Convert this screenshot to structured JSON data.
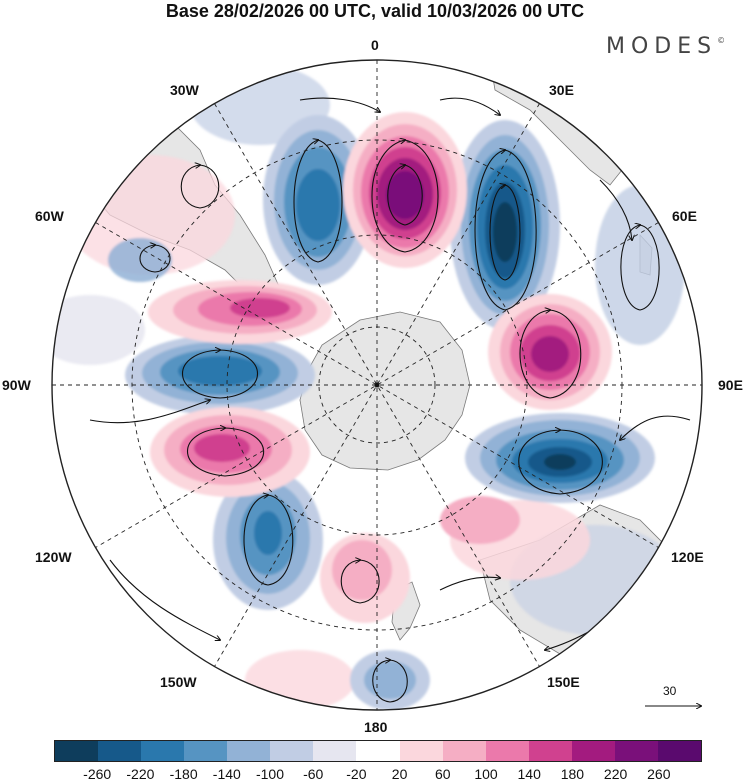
{
  "header": {
    "title": "Base 28/02/2026 00 UTC, valid 10/03/2026 00 UTC",
    "brand": "MODES",
    "brand_mark": "©"
  },
  "map": {
    "projection": "south-polar-stereographic",
    "longitude_labels": {
      "lon_0": "0",
      "lon_30e": "30E",
      "lon_60e": "60E",
      "lon_90e": "90E",
      "lon_120e": "120E",
      "lon_150e": "150E",
      "lon_180": "180",
      "lon_150w": "150W",
      "lon_120w": "120W",
      "lon_90w": "90W",
      "lon_60w": "60W",
      "lon_30w": "30W"
    },
    "reference_vector_label": "30"
  },
  "colors": {
    "land": "#e6e6e6",
    "coast": "#7a7a7a",
    "background": "#ffffff"
  },
  "colorbar": {
    "ticks": [
      "-260",
      "-220",
      "-180",
      "-140",
      "-100",
      "-60",
      "-20",
      "20",
      "60",
      "100",
      "140",
      "180",
      "220",
      "260"
    ],
    "colors": [
      "#0e3d5c",
      "#16598a",
      "#2a78ad",
      "#5694c2",
      "#92b2d6",
      "#c1cde4",
      "#e6e6f0",
      "#ffffff",
      "#fbd7dd",
      "#f5aec4",
      "#eb79ab",
      "#d0418f",
      "#a31b7f",
      "#7a107a",
      "#5a0a6e"
    ]
  }
}
